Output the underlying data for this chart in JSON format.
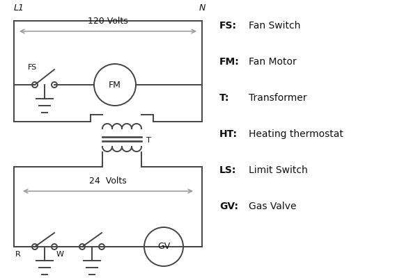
{
  "legend": [
    [
      "FS:",
      "Fan Switch"
    ],
    [
      "FM:",
      "Fan Motor"
    ],
    [
      "T:",
      "Transformer"
    ],
    [
      "HT:",
      "Heating thermostat"
    ],
    [
      "LS:",
      "Limit Switch"
    ],
    [
      "GV:",
      "Gas Valve"
    ]
  ],
  "line_color": "#444444",
  "bg_color": "#ffffff",
  "text_color": "#111111",
  "arrow_color": "#999999"
}
